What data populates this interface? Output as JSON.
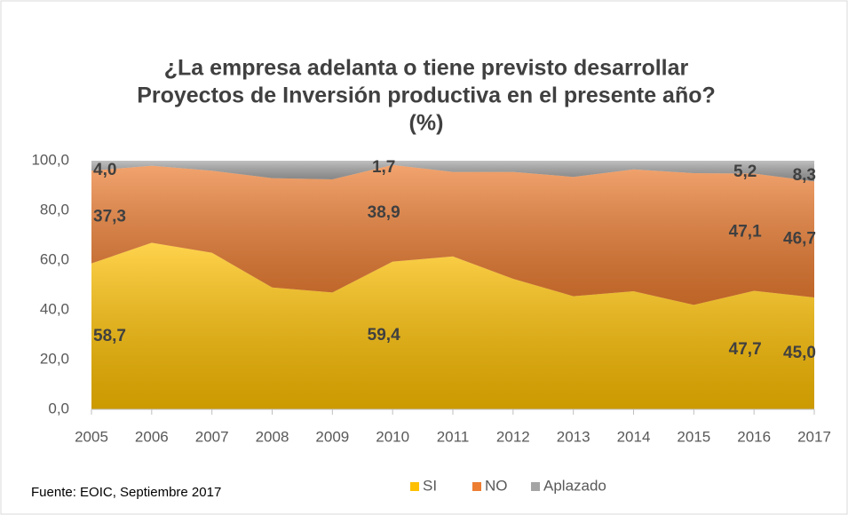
{
  "chart_data": {
    "type": "stacked_area",
    "title": [
      "¿La empresa adelanta o tiene previsto desarrollar",
      "Proyectos de Inversión productiva en el presente año?",
      "(%)"
    ],
    "x": [
      2005,
      2006,
      2007,
      2008,
      2009,
      2010,
      2011,
      2012,
      2013,
      2014,
      2015,
      2016,
      2017
    ],
    "xlim": [
      2005,
      2017
    ],
    "xticks": [
      2005,
      2006,
      2007,
      2008,
      2009,
      2010,
      2011,
      2012,
      2013,
      2014,
      2015,
      2016,
      2017
    ],
    "ylim": [
      0,
      100
    ],
    "yticks": [
      {
        "value": 0,
        "label": "0,0"
      },
      {
        "value": 20,
        "label": "20,0"
      },
      {
        "value": 40,
        "label": "40,0"
      },
      {
        "value": 60,
        "label": "60,0"
      },
      {
        "value": 80,
        "label": "80,0"
      },
      {
        "value": 100,
        "label": "100,0"
      }
    ],
    "series": [
      {
        "name": "SI",
        "color": "#ffc000",
        "values": [
          58.7,
          67,
          63,
          49,
          47,
          59.4,
          61.5,
          52.5,
          45.5,
          47.5,
          42,
          47.7,
          45.0
        ],
        "value_labels": [
          "58,7",
          null,
          null,
          null,
          null,
          "59,4",
          null,
          null,
          null,
          null,
          null,
          "47,7",
          "45,0"
        ]
      },
      {
        "name": "NO",
        "color": "#ed7d31",
        "values": [
          37.3,
          31,
          33,
          44,
          45.5,
          38.9,
          34,
          43,
          48,
          49,
          53,
          47.1,
          46.7
        ],
        "value_labels": [
          "37,3",
          null,
          null,
          null,
          null,
          "38,9",
          null,
          null,
          null,
          null,
          null,
          "47,1",
          "46,7"
        ]
      },
      {
        "name": "Aplazado",
        "color": "#a5a5a5",
        "values": [
          4.0,
          2,
          4,
          7,
          7.5,
          1.7,
          4.5,
          4.5,
          6.5,
          3.5,
          5,
          5.2,
          8.3
        ],
        "value_labels": [
          "4,0",
          null,
          null,
          null,
          null,
          "1,7",
          null,
          null,
          null,
          null,
          null,
          "5,2",
          "8,3"
        ]
      }
    ],
    "source": "Fuente: EOIC, Septiembre 2017"
  }
}
